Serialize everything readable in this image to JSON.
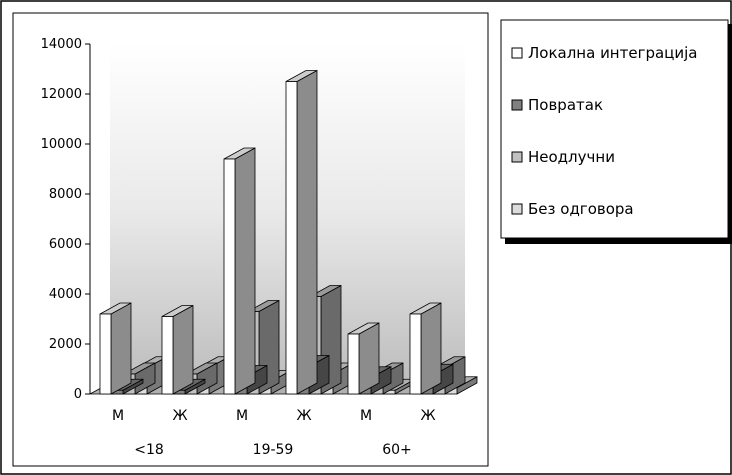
{
  "chart_data": {
    "type": "bar",
    "categories": [
      "М",
      "Ж",
      "М",
      "Ж",
      "М",
      "Ж"
    ],
    "groups": [
      {
        "label": "<18",
        "span": [
          0,
          1
        ]
      },
      {
        "label": "19-59",
        "span": [
          2,
          3
        ]
      },
      {
        "label": "60+",
        "span": [
          4,
          5
        ]
      }
    ],
    "series": [
      {
        "name": "Локална интеграција",
        "color": "#ffffff",
        "values": [
          3200,
          3100,
          9400,
          12500,
          2400,
          3200
        ]
      },
      {
        "name": "Повратак",
        "color": "#808080",
        "values": [
          150,
          150,
          700,
          1100,
          650,
          750
        ]
      },
      {
        "name": "Неодлучни",
        "color": "#c0c0c0",
        "values": [
          800,
          800,
          3300,
          3900,
          800,
          1050
        ]
      },
      {
        "name": "Без одговора",
        "color": "#dcdcdc",
        "values": [
          1050,
          1050,
          500,
          800,
          150,
          250
        ]
      }
    ],
    "yticks": [
      0,
      2000,
      4000,
      6000,
      8000,
      10000,
      12000,
      14000
    ],
    "ylim": [
      0,
      14000
    ],
    "legend_position": "right",
    "grid": false,
    "background": "gradient"
  }
}
